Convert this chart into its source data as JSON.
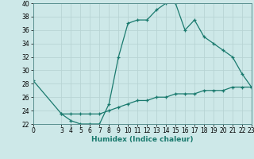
{
  "upper_x": [
    0,
    3,
    4,
    5,
    6,
    7,
    8,
    9,
    10,
    11,
    12,
    13,
    14,
    15,
    16,
    17,
    18,
    19,
    20,
    21,
    22,
    23
  ],
  "upper_y": [
    28.5,
    23.5,
    22.5,
    22.0,
    22.0,
    22.0,
    25.0,
    32.0,
    37.0,
    37.5,
    37.5,
    39.0,
    40.0,
    40.0,
    36.0,
    37.5,
    35.0,
    34.0,
    33.0,
    32.0,
    29.5,
    27.5
  ],
  "lower_x": [
    3,
    4,
    5,
    6,
    7,
    8,
    9,
    10,
    11,
    12,
    13,
    14,
    15,
    16,
    17,
    18,
    19,
    20,
    21,
    22,
    23
  ],
  "lower_y": [
    23.5,
    23.5,
    23.5,
    23.5,
    23.5,
    24.0,
    24.5,
    25.0,
    25.5,
    25.5,
    26.0,
    26.0,
    26.5,
    26.5,
    26.5,
    27.0,
    27.0,
    27.0,
    27.5,
    27.5,
    27.5
  ],
  "line_color": "#1a7a6e",
  "bg_color": "#cde8e8",
  "grid_color": "#b8d4d4",
  "xlabel": "Humidex (Indice chaleur)",
  "xlim": [
    0,
    23
  ],
  "ylim": [
    22,
    40
  ],
  "xticks": [
    0,
    3,
    4,
    5,
    6,
    7,
    8,
    9,
    10,
    11,
    12,
    13,
    14,
    15,
    16,
    17,
    18,
    19,
    20,
    21,
    22,
    23
  ],
  "yticks": [
    22,
    24,
    26,
    28,
    30,
    32,
    34,
    36,
    38,
    40
  ]
}
